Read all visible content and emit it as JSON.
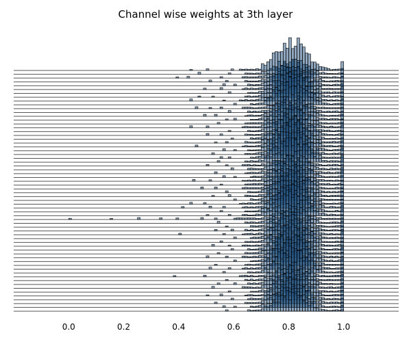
{
  "chart_data": {
    "type": "histogram",
    "title": "Channel wise weights at 3th layer",
    "xlabel": "",
    "ylabel": "",
    "xlim": [
      -0.2,
      1.2
    ],
    "x_ticks": [
      0.0,
      0.2,
      0.4,
      0.6,
      0.8,
      1.0
    ],
    "x_tick_labels": [
      "0.0",
      "0.2",
      "0.4",
      "0.6",
      "0.8",
      "1.0"
    ],
    "grid": false,
    "legend": "none",
    "layout": "stacked ridgeline histograms, one row per channel",
    "n_channels": 64,
    "bin_width": 0.01,
    "value_range": [
      0.0,
      1.0
    ],
    "distribution_peak": 0.81,
    "bin_edges_start": 0.0,
    "bin_edges_end": 1.0,
    "bar_fill": "#1f4e79",
    "bar_alpha": 0.5,
    "bar_edge": "#000000",
    "baseline_color": "#555555",
    "rows": [
      {
        "channel": 1,
        "outliers": [
          0.59,
          0.44,
          0.5
        ],
        "left_tail": 0.62
      },
      {
        "channel": 2,
        "outliers": [
          0.58,
          0.47
        ],
        "left_tail": 0.64
      },
      {
        "channel": 3,
        "outliers": [
          0.55,
          0.43,
          0.39
        ],
        "left_tail": 0.63
      },
      {
        "channel": 4,
        "outliers": [
          0.57,
          0.51
        ],
        "left_tail": 0.64
      },
      {
        "channel": 5,
        "outliers": [
          0.6,
          0.56
        ],
        "left_tail": 0.65
      },
      {
        "channel": 6,
        "outliers": [
          0.55,
          0.49
        ],
        "left_tail": 0.63
      },
      {
        "channel": 7,
        "outliers": [
          0.58
        ],
        "left_tail": 0.65
      },
      {
        "channel": 8,
        "outliers": [
          0.47,
          0.52
        ],
        "left_tail": 0.64
      },
      {
        "channel": 9,
        "outliers": [
          0.56,
          0.44
        ],
        "left_tail": 0.62
      },
      {
        "channel": 10,
        "outliers": [
          0.6
        ],
        "left_tail": 0.66
      },
      {
        "channel": 11,
        "outliers": [
          0.46,
          0.51,
          0.55
        ],
        "left_tail": 0.63
      },
      {
        "channel": 12,
        "outliers": [
          0.58
        ],
        "left_tail": 0.65
      },
      {
        "channel": 13,
        "outliers": [
          0.53,
          0.49
        ],
        "left_tail": 0.64
      },
      {
        "channel": 14,
        "outliers": [
          0.6,
          0.57
        ],
        "left_tail": 0.66
      },
      {
        "channel": 15,
        "outliers": [
          0.54
        ],
        "left_tail": 0.64
      },
      {
        "channel": 16,
        "outliers": [
          0.5,
          0.44
        ],
        "left_tail": 0.63
      },
      {
        "channel": 17,
        "outliers": [
          0.58
        ],
        "left_tail": 0.65
      },
      {
        "channel": 18,
        "outliers": [
          0.55,
          0.5
        ],
        "left_tail": 0.64
      },
      {
        "channel": 19,
        "outliers": [
          0.59
        ],
        "left_tail": 0.66
      },
      {
        "channel": 20,
        "outliers": [
          0.57,
          0.53
        ],
        "left_tail": 0.64
      },
      {
        "channel": 21,
        "outliers": [
          0.46
        ],
        "left_tail": 0.63
      },
      {
        "channel": 22,
        "outliers": [
          0.56,
          0.6
        ],
        "left_tail": 0.65
      },
      {
        "channel": 23,
        "outliers": [
          0.52
        ],
        "left_tail": 0.64
      },
      {
        "channel": 24,
        "outliers": [
          0.58,
          0.55
        ],
        "left_tail": 0.66
      },
      {
        "channel": 25,
        "outliers": [
          0.54
        ],
        "left_tail": 0.64
      },
      {
        "channel": 26,
        "outliers": [
          0.5,
          0.57
        ],
        "left_tail": 0.63
      },
      {
        "channel": 27,
        "outliers": [
          0.59
        ],
        "left_tail": 0.65
      },
      {
        "channel": 28,
        "outliers": [
          0.53
        ],
        "left_tail": 0.64
      },
      {
        "channel": 29,
        "outliers": [
          0.56,
          0.6
        ],
        "left_tail": 0.66
      },
      {
        "channel": 30,
        "outliers": [
          0.45,
          0.51
        ],
        "left_tail": 0.63
      },
      {
        "channel": 31,
        "outliers": [
          0.55
        ],
        "left_tail": 0.64
      },
      {
        "channel": 32,
        "outliers": [
          0.48,
          0.53
        ],
        "left_tail": 0.63
      },
      {
        "channel": 33,
        "outliers": [
          0.57
        ],
        "left_tail": 0.65
      },
      {
        "channel": 34,
        "outliers": [
          0.52,
          0.58
        ],
        "left_tail": 0.64
      },
      {
        "channel": 35,
        "outliers": [
          0.6
        ],
        "left_tail": 0.66
      },
      {
        "channel": 36,
        "outliers": [
          0.49,
          0.44
        ],
        "left_tail": 0.62
      },
      {
        "channel": 37,
        "outliers": [
          0.41,
          0.51,
          0.56
        ],
        "left_tail": 0.63
      },
      {
        "channel": 38,
        "outliers": [
          0.55
        ],
        "left_tail": 0.64
      },
      {
        "channel": 39,
        "outliers": [
          0.5,
          0.58
        ],
        "left_tail": 0.63
      },
      {
        "channel": 40,
        "outliers": [
          0.0,
          0.15,
          0.25,
          0.33,
          0.39,
          0.48,
          0.53
        ],
        "left_tail": 0.6
      },
      {
        "channel": 41,
        "outliers": [
          0.54
        ],
        "left_tail": 0.64
      },
      {
        "channel": 42,
        "outliers": [
          0.57
        ],
        "left_tail": 0.66
      },
      {
        "channel": 43,
        "outliers": [
          0.53,
          0.59
        ],
        "left_tail": 0.64
      },
      {
        "channel": 44,
        "outliers": [
          0.4,
          0.56
        ],
        "left_tail": 0.63
      },
      {
        "channel": 45,
        "outliers": [
          0.6
        ],
        "left_tail": 0.66
      },
      {
        "channel": 46,
        "outliers": [
          0.55
        ],
        "left_tail": 0.64
      },
      {
        "channel": 47,
        "outliers": [
          0.52,
          0.58
        ],
        "left_tail": 0.63
      },
      {
        "channel": 48,
        "outliers": [
          0.59
        ],
        "left_tail": 0.65
      },
      {
        "channel": 49,
        "outliers": [
          0.54
        ],
        "left_tail": 0.64
      },
      {
        "channel": 50,
        "outliers": [
          0.5,
          0.57
        ],
        "left_tail": 0.63
      },
      {
        "channel": 51,
        "outliers": [
          0.6
        ],
        "left_tail": 0.66
      },
      {
        "channel": 52,
        "outliers": [
          0.53
        ],
        "left_tail": 0.64
      },
      {
        "channel": 53,
        "outliers": [
          0.51,
          0.58
        ],
        "left_tail": 0.63
      },
      {
        "channel": 54,
        "outliers": [
          0.56
        ],
        "left_tail": 0.65
      },
      {
        "channel": 55,
        "outliers": [
          0.49,
          0.38
        ],
        "left_tail": 0.62
      },
      {
        "channel": 56,
        "outliers": [
          0.57
        ],
        "left_tail": 0.64
      },
      {
        "channel": 57,
        "outliers": [
          0.54,
          0.6
        ],
        "left_tail": 0.65
      },
      {
        "channel": 58,
        "outliers": [
          0.52
        ],
        "left_tail": 0.63
      },
      {
        "channel": 59,
        "outliers": [
          0.58
        ],
        "left_tail": 0.66
      },
      {
        "channel": 60,
        "outliers": [
          0.55,
          0.5
        ],
        "left_tail": 0.64
      },
      {
        "channel": 61,
        "outliers": [
          0.59
        ],
        "left_tail": 0.65
      },
      {
        "channel": 62,
        "outliers": [
          0.53
        ],
        "left_tail": 0.64
      },
      {
        "channel": 63,
        "outliers": [
          0.56,
          0.6
        ],
        "left_tail": 0.66
      },
      {
        "channel": 64,
        "outliers": [
          0.57
        ],
        "left_tail": 0.65
      }
    ]
  }
}
